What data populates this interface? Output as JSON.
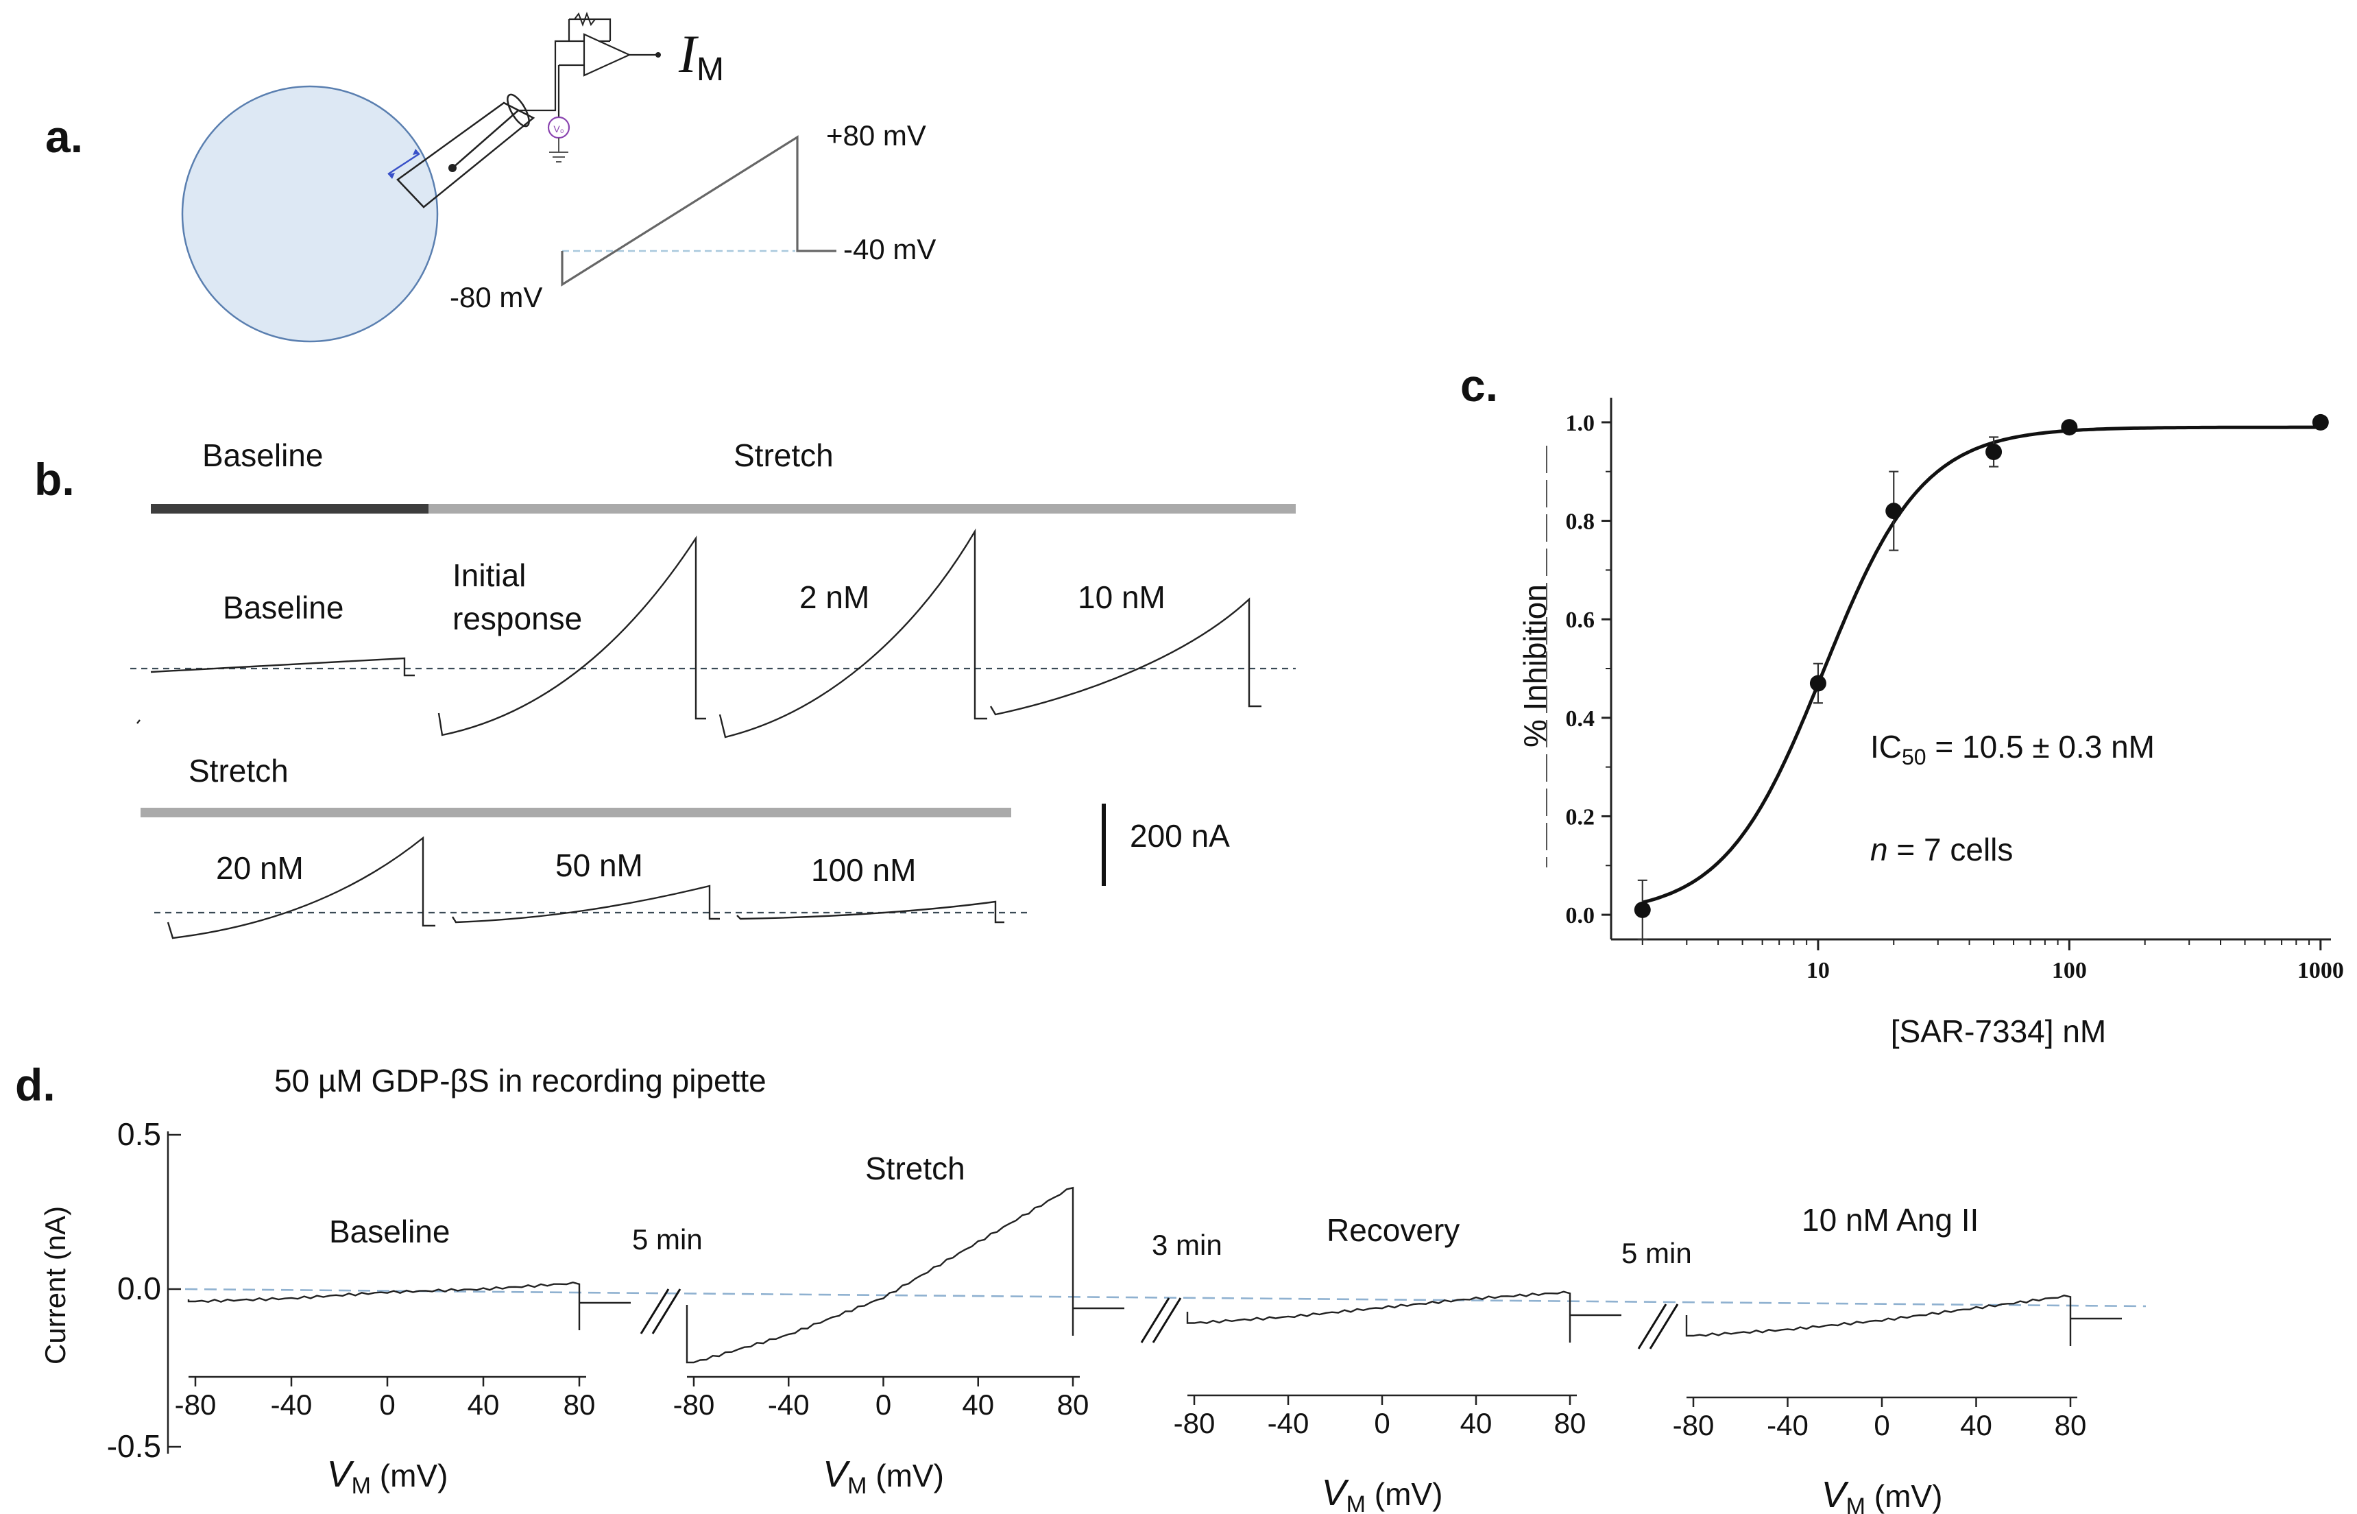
{
  "panel_labels": {
    "a": "a.",
    "b": "b.",
    "c": "c.",
    "d": "d."
  },
  "panel_a": {
    "current_symbol": "I",
    "current_subscript": "M",
    "source_symbol": "V₀",
    "protocol_labels": {
      "top": "+80 mV",
      "hold": "-40 mV",
      "bottom": "-80 mV"
    }
  },
  "panel_b": {
    "bar_labels": {
      "baseline": "Baseline",
      "stretch": "Stretch",
      "stretch2": "Stretch"
    },
    "trace_labels": {
      "baseline": "Baseline",
      "initial_line1": "Initial",
      "initial_line2": "response",
      "c2": "2 nM",
      "c10": "10 nM",
      "c20": "20 nM",
      "c50": "50 nM",
      "c100": "100 nM"
    },
    "scale_bar": "200 nA"
  },
  "panel_c": {
    "ylabel": "% Inhibition",
    "xlabel": "[SAR-7334] nM",
    "ic50_prefix": "IC",
    "ic50_sub": "50",
    "ic50_value": " = 10.5 ± 0.3 nM",
    "n_italic": "n",
    "n_rest": " = 7 cells",
    "yticks": [
      "0.0",
      "0.2",
      "0.4",
      "0.6",
      "0.8",
      "1.0"
    ],
    "xticks": [
      "10",
      "100",
      "1000"
    ]
  },
  "panel_d": {
    "title": "50 µM GDP-βS in recording pipette",
    "ylabel": "Current (nA)",
    "yticks": [
      "0.5",
      "0.0",
      "-0.5"
    ],
    "xticks": [
      "-80",
      "-40",
      "0",
      "40",
      "80"
    ],
    "xlabel_main": "V",
    "xlabel_sub": "M",
    "xlabel_unit": " (mV)",
    "trace_labels": [
      "Baseline",
      "Stretch",
      "Recovery",
      "10 nM Ang II"
    ],
    "gap_labels": [
      "5 min",
      "3 min",
      "5 min"
    ]
  },
  "chart_data": [
    {
      "type": "scatter",
      "title": "",
      "xlabel": "[SAR-7334] nM",
      "ylabel": "% Inhibition",
      "xscale": "log",
      "xlim": [
        1.5,
        1100
      ],
      "ylim": [
        -0.05,
        1.05
      ],
      "series": [
        {
          "name": "data",
          "x": [
            2,
            10,
            20,
            50,
            100,
            1000
          ],
          "y": [
            0.01,
            0.47,
            0.82,
            0.94,
            0.99,
            1.0
          ],
          "error": [
            0.06,
            0.04,
            0.08,
            0.03,
            0.01,
            0.0
          ]
        },
        {
          "name": "fit",
          "model": "hill",
          "ic50_nM": 10.5,
          "hill": 2.2,
          "top": 0.99,
          "bottom": 0.0
        }
      ],
      "annotations": [
        "IC50 = 10.5 ± 0.3 nM",
        "n = 7 cells"
      ]
    },
    {
      "type": "line",
      "title": "50 µM GDP-βS in recording pipette",
      "xlabel": "VM (mV)",
      "ylabel": "Current (nA)",
      "xlim": [
        -80,
        80
      ],
      "ylim": [
        -0.5,
        0.5
      ],
      "series": [
        {
          "name": "Baseline",
          "x": [
            -80,
            -40,
            0,
            40,
            80
          ],
          "y": [
            -0.04,
            -0.03,
            -0.01,
            0.0,
            0.02
          ]
        },
        {
          "name": "Stretch",
          "x": [
            -80,
            -40,
            0,
            40,
            80
          ],
          "y": [
            -0.22,
            -0.13,
            -0.01,
            0.17,
            0.35
          ]
        },
        {
          "name": "Recovery",
          "x": [
            -80,
            -40,
            0,
            40,
            80
          ],
          "y": [
            -0.07,
            -0.05,
            -0.02,
            0.01,
            0.03
          ]
        },
        {
          "name": "10 nM Ang II",
          "x": [
            -80,
            -40,
            0,
            40,
            80
          ],
          "y": [
            -0.1,
            -0.08,
            -0.05,
            -0.01,
            0.03
          ]
        }
      ]
    }
  ]
}
